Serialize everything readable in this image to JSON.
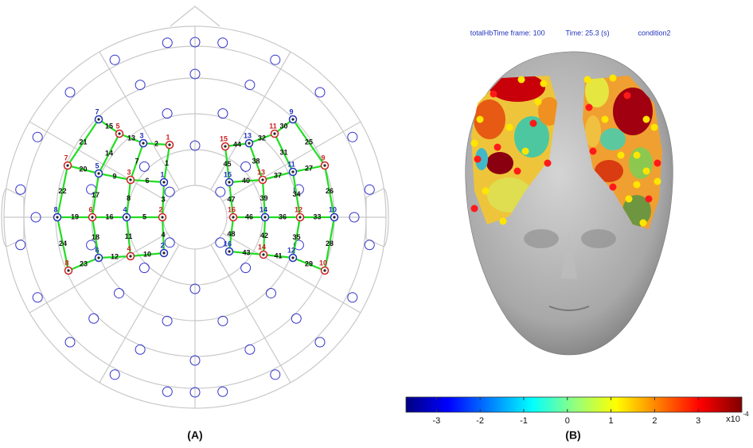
{
  "panel_a": {
    "label": "(A)",
    "montage": {
      "left": {
        "optodes": [
          7,
          5,
          3,
          1,
          7,
          5,
          3,
          1,
          8,
          6,
          4,
          2,
          8,
          6,
          4,
          2
        ],
        "channels": [
          15,
          13,
          2,
          20,
          9,
          6,
          19,
          16,
          5,
          23,
          12,
          10,
          21,
          22,
          24,
          14,
          17,
          18,
          7,
          8,
          11,
          1,
          3,
          4
        ]
      },
      "right": {
        "optodes": [
          15,
          13,
          11,
          9,
          15,
          13,
          11,
          9,
          16,
          14,
          12,
          10,
          16,
          14,
          12,
          10
        ],
        "channels": [
          44,
          32,
          30,
          40,
          37,
          27,
          46,
          36,
          33,
          43,
          41,
          29,
          45,
          47,
          48,
          38,
          39,
          42,
          31,
          34,
          35,
          25,
          26,
          28
        ]
      }
    }
  },
  "panel_b": {
    "label": "(B)",
    "header": [
      "totalHb",
      "Time frame: 100",
      "Time: 25.3 (s)",
      "condition2"
    ],
    "colorbar": {
      "lim": [
        -3.7,
        4.0
      ],
      "ticks": [
        -3,
        -2,
        -1,
        0,
        1,
        2,
        3
      ],
      "multiplier": "x10",
      "exponent": "-4"
    }
  }
}
